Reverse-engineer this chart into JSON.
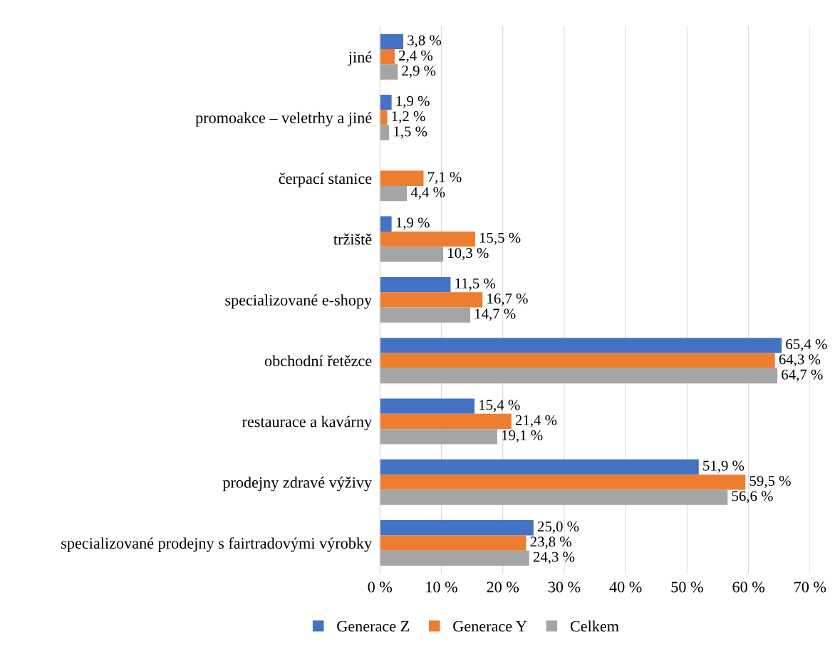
{
  "chart_data": {
    "type": "bar",
    "orientation": "horizontal",
    "categories": [
      "jiné",
      "promoakce – veletrhy a jiné",
      "čerpací stanice",
      "tržiště",
      "specializované e-shopy",
      "obchodní řetězce",
      "restaurace a kavárny",
      "prodejny zdravé výživy",
      "specializované prodejny s fairtradovými výrobky"
    ],
    "series": [
      {
        "name": "Generace Z",
        "color": "#4472c4",
        "values": [
          3.8,
          1.9,
          null,
          1.9,
          11.5,
          65.4,
          15.4,
          51.9,
          25.0
        ],
        "value_labels": [
          "3,8 %",
          "1,9 %",
          null,
          "1,9 %",
          "11,5 %",
          "65,4 %",
          "15,4 %",
          "51,9 %",
          "25,0 %"
        ]
      },
      {
        "name": "Generace Y",
        "color": "#ed7d31",
        "values": [
          2.4,
          1.2,
          7.1,
          15.5,
          16.7,
          64.3,
          21.4,
          59.5,
          23.8
        ],
        "value_labels": [
          "2,4 %",
          "1,2 %",
          "7,1 %",
          "15,5 %",
          "16,7 %",
          "64,3 %",
          "21,4 %",
          "59,5 %",
          "23,8 %"
        ]
      },
      {
        "name": "Celkem",
        "color": "#a5a5a5",
        "values": [
          2.9,
          1.5,
          4.4,
          10.3,
          14.7,
          64.7,
          19.1,
          56.6,
          24.3
        ],
        "value_labels": [
          "2,9 %",
          "1,5 %",
          "4,4 %",
          "10,3 %",
          "14,7 %",
          "64,7 %",
          "19,1 %",
          "56,6 %",
          "24,3 %"
        ]
      }
    ],
    "xlim": [
      0,
      70
    ],
    "xticks": [
      {
        "value": 0,
        "label": "0 %"
      },
      {
        "value": 10,
        "label": "10 %"
      },
      {
        "value": 20,
        "label": "20 %"
      },
      {
        "value": 30,
        "label": "30 %"
      },
      {
        "value": 40,
        "label": "40 %"
      },
      {
        "value": 50,
        "label": "50 %"
      },
      {
        "value": 60,
        "label": "60 %"
      },
      {
        "value": 70,
        "label": "70 %"
      }
    ],
    "grid": "x",
    "legend": "bottom"
  }
}
